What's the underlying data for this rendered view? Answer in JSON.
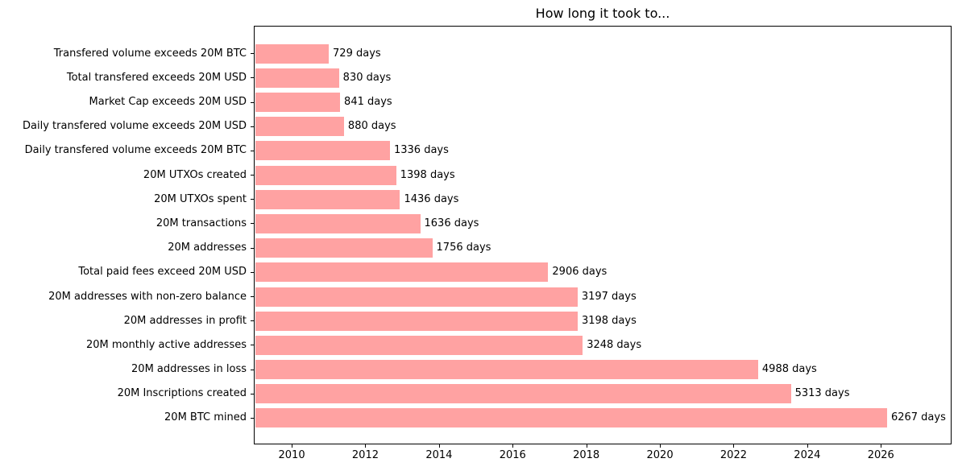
{
  "figure": {
    "title": "How long it took to..."
  },
  "chart_data": {
    "type": "bar",
    "orientation": "horizontal",
    "title": "How long it took to...",
    "unit": "days",
    "grid": false,
    "legend": false,
    "bar_color": "#ffa2a2",
    "axis_color": "#000000",
    "text_color": "#000000",
    "categories": [
      "Transfered volume exceeds 20M BTC",
      "Total transfered exceeds 20M USD",
      "Market Cap exceeds 20M USD",
      "Daily transfered volume exceeds 20M USD",
      "Daily transfered volume exceeds 20M BTC",
      "20M UTXOs created",
      "20M UTXOs spent",
      "20M transactions",
      "20M addresses",
      "Total paid fees exceed 20M USD",
      "20M addresses with non-zero balance",
      "20M addresses in profit",
      "20M monthly active addresses",
      "20M addresses in loss",
      "20M Inscriptions created",
      "20M BTC mined"
    ],
    "values": [
      729,
      830,
      841,
      880,
      1336,
      1398,
      1436,
      1636,
      1756,
      2906,
      3197,
      3198,
      3248,
      4988,
      5313,
      6267
    ],
    "value_labels": [
      "729 days",
      "830 days",
      "841 days",
      "880 days",
      "1336 days",
      "1398 days",
      "1436 days",
      "1636 days",
      "1756 days",
      "2906 days",
      "3197 days",
      "3198 days",
      "3248 days",
      "4988 days",
      "5313 days",
      "6267 days"
    ],
    "x_axis": {
      "min": 2008.97,
      "max": 2027.92,
      "bar_start": 2009.01,
      "days_per_year": 365.25,
      "tick_values": [
        2010,
        2012,
        2014,
        2016,
        2018,
        2020,
        2022,
        2024,
        2026
      ],
      "tick_labels": [
        "2010",
        "2012",
        "2014",
        "2016",
        "2018",
        "2020",
        "2022",
        "2024",
        "2026"
      ]
    }
  }
}
